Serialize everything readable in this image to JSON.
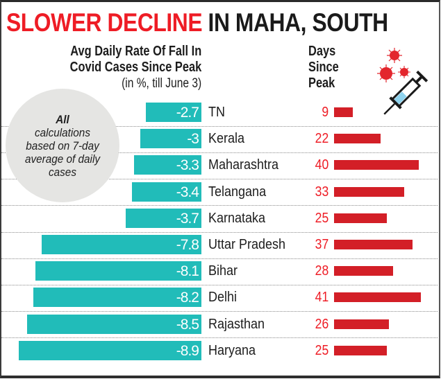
{
  "header": {
    "title_red": "SLOWER DECLINE",
    "title_black": "IN MAHA, SOUTH"
  },
  "left_axis": {
    "line1": "Avg Daily Rate Of Fall In",
    "line2": "Covid Cases Since Peak",
    "note": "(in %, till June 3)"
  },
  "right_axis": {
    "line1": "Days",
    "line2": "Since",
    "line3": "Peak"
  },
  "callout": {
    "line1": "All",
    "line2": "calculations",
    "line3": "based on 7-day",
    "line4": "average of daily",
    "line5": "cases"
  },
  "icons": {
    "illustration": "virus-syringe-icon"
  },
  "colors": {
    "title_accent": "#ee1c25",
    "rate_bar": "#21bcb9",
    "days_bar": "#d31f27",
    "days_text": "#ee1c25"
  },
  "chart_data": {
    "type": "bar",
    "title": "SLOWER DECLINE IN MAHA, SOUTH",
    "orientation": "horizontal",
    "categories": [
      "TN",
      "Kerala",
      "Maharashtra",
      "Telangana",
      "Karnataka",
      "Uttar Pradesh",
      "Bihar",
      "Delhi",
      "Rajasthan",
      "Haryana"
    ],
    "series": [
      {
        "name": "Avg Daily Rate Of Fall In Covid Cases Since Peak (in %, till June 3)",
        "values": [
          -2.7,
          -3,
          -3.3,
          -3.4,
          -3.7,
          -7.8,
          -8.1,
          -8.2,
          -8.5,
          -8.9
        ],
        "labels": [
          "-2.7",
          "-3",
          "-3.3",
          "-3.4",
          "-3.7",
          "-7.8",
          "-8.1",
          "-8.2",
          "-8.5",
          "-8.9"
        ]
      },
      {
        "name": "Days Since Peak",
        "values": [
          9,
          22,
          40,
          33,
          25,
          37,
          28,
          41,
          26,
          25
        ],
        "labels": [
          "9",
          "22",
          "40",
          "33",
          "25",
          "37",
          "28",
          "41",
          "26",
          "25"
        ]
      }
    ],
    "annotation": "All calculations based on 7-day average of daily cases",
    "grid": false,
    "row_dividers": true
  }
}
